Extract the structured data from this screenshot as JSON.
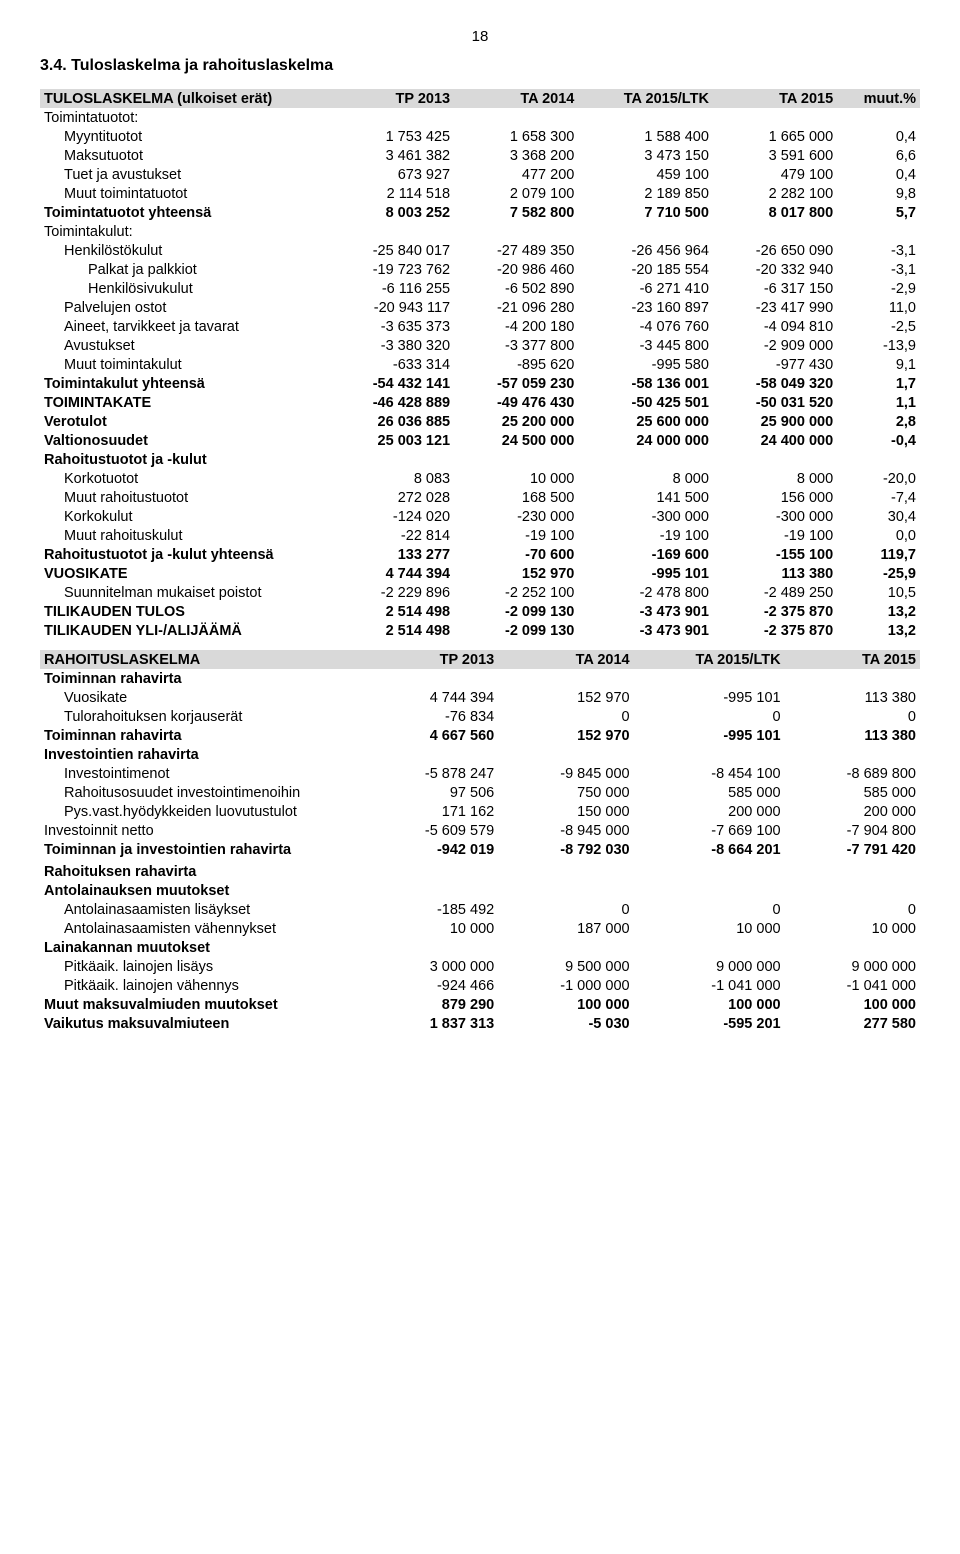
{
  "page_number": "18",
  "section": "3.4.   Tuloslaskelma ja rahoituslaskelma",
  "tulos": {
    "header": [
      "TULOSLASKELMA (ulkoiset erät)",
      "TP 2013",
      "TA 2014",
      "TA 2015/LTK",
      "TA 2015",
      "muut.%"
    ],
    "rows": [
      {
        "label": "Toimintatuotot:",
        "v": [
          "",
          "",
          "",
          "",
          ""
        ],
        "cls": ""
      },
      {
        "label": "Myyntituotot",
        "v": [
          "1 753 425",
          "1 658 300",
          "1 588 400",
          "1 665 000",
          "0,4"
        ],
        "cls": "indent1"
      },
      {
        "label": "Maksutuotot",
        "v": [
          "3 461 382",
          "3 368 200",
          "3 473 150",
          "3 591 600",
          "6,6"
        ],
        "cls": "indent1"
      },
      {
        "label": "Tuet ja avustukset",
        "v": [
          "673 927",
          "477 200",
          "459 100",
          "479 100",
          "0,4"
        ],
        "cls": "indent1"
      },
      {
        "label": "Muut toimintatuotot",
        "v": [
          "2 114 518",
          "2 079 100",
          "2 189 850",
          "2 282 100",
          "9,8"
        ],
        "cls": "indent1"
      },
      {
        "label": "Toimintatuotot yhteensä",
        "v": [
          "8 003 252",
          "7 582 800",
          "7 710 500",
          "8 017 800",
          "5,7"
        ],
        "cls": "bold"
      },
      {
        "label": "Toimintakulut:",
        "v": [
          "",
          "",
          "",
          "",
          ""
        ],
        "cls": ""
      },
      {
        "label": "Henkilöstökulut",
        "v": [
          "-25 840 017",
          "-27 489 350",
          "-26 456 964",
          "-26 650 090",
          "-3,1"
        ],
        "cls": "indent1"
      },
      {
        "label": "Palkat ja palkkiot",
        "v": [
          "-19 723 762",
          "-20 986 460",
          "-20 185 554",
          "-20 332 940",
          "-3,1"
        ],
        "cls": "indent2"
      },
      {
        "label": "Henkilösivukulut",
        "v": [
          "-6 116 255",
          "-6 502 890",
          "-6 271 410",
          "-6 317 150",
          "-2,9"
        ],
        "cls": "indent2"
      },
      {
        "label": "Palvelujen ostot",
        "v": [
          "-20 943 117",
          "-21 096 280",
          "-23 160 897",
          "-23 417 990",
          "11,0"
        ],
        "cls": "indent1"
      },
      {
        "label": "Aineet, tarvikkeet ja tavarat",
        "v": [
          "-3 635 373",
          "-4 200 180",
          "-4 076 760",
          "-4 094 810",
          "-2,5"
        ],
        "cls": "indent1"
      },
      {
        "label": "Avustukset",
        "v": [
          "-3 380 320",
          "-3 377 800",
          "-3 445 800",
          "-2 909 000",
          "-13,9"
        ],
        "cls": "indent1"
      },
      {
        "label": "Muut toimintakulut",
        "v": [
          "-633 314",
          "-895 620",
          "-995 580",
          "-977 430",
          "9,1"
        ],
        "cls": "indent1"
      },
      {
        "label": "Toimintakulut yhteensä",
        "v": [
          "-54 432 141",
          "-57 059 230",
          "-58 136 001",
          "-58 049 320",
          "1,7"
        ],
        "cls": "bold"
      },
      {
        "label": "TOIMINTAKATE",
        "v": [
          "-46 428 889",
          "-49 476 430",
          "-50 425 501",
          "-50 031 520",
          "1,1"
        ],
        "cls": "bold"
      },
      {
        "label": "Verotulot",
        "v": [
          "26 036 885",
          "25 200 000",
          "25 600 000",
          "25 900 000",
          "2,8"
        ],
        "cls": "bold"
      },
      {
        "label": "Valtionosuudet",
        "v": [
          "25 003 121",
          "24 500 000",
          "24 000 000",
          "24 400 000",
          "-0,4"
        ],
        "cls": "bold"
      },
      {
        "label": "Rahoitustuotot ja -kulut",
        "v": [
          "",
          "",
          "",
          "",
          ""
        ],
        "cls": "bold"
      },
      {
        "label": "Korkotuotot",
        "v": [
          "8 083",
          "10 000",
          "8 000",
          "8 000",
          "-20,0"
        ],
        "cls": "indent1"
      },
      {
        "label": "Muut rahoitustuotot",
        "v": [
          "272 028",
          "168 500",
          "141 500",
          "156 000",
          "-7,4"
        ],
        "cls": "indent1"
      },
      {
        "label": "Korkokulut",
        "v": [
          "-124 020",
          "-230 000",
          "-300 000",
          "-300 000",
          "30,4"
        ],
        "cls": "indent1"
      },
      {
        "label": "Muut rahoituskulut",
        "v": [
          "-22 814",
          "-19 100",
          "-19 100",
          "-19 100",
          "0,0"
        ],
        "cls": "indent1"
      },
      {
        "label": "Rahoitustuotot ja -kulut yhteensä",
        "v": [
          "133 277",
          "-70 600",
          "-169 600",
          "-155 100",
          "119,7"
        ],
        "cls": "bold"
      },
      {
        "label": "VUOSIKATE",
        "v": [
          "4 744 394",
          "152 970",
          "-995 101",
          "113 380",
          "-25,9"
        ],
        "cls": "bold"
      },
      {
        "label": "Suunnitelman mukaiset poistot",
        "v": [
          "-2 229 896",
          "-2 252 100",
          "-2 478 800",
          "-2 489 250",
          "10,5"
        ],
        "cls": "indent1"
      },
      {
        "label": "TILIKAUDEN TULOS",
        "v": [
          "2 514 498",
          "-2 099 130",
          "-3 473 901",
          "-2 375 870",
          "13,2"
        ],
        "cls": "bold"
      },
      {
        "label": "TILIKAUDEN YLI-/ALIJÄÄMÄ",
        "v": [
          "2 514 498",
          "-2 099 130",
          "-3 473 901",
          "-2 375 870",
          "13,2"
        ],
        "cls": "bold"
      }
    ]
  },
  "rahoitus": {
    "header": [
      "RAHOITUSLASKELMA",
      "TP 2013",
      "TA 2014",
      "TA 2015/LTK",
      "TA 2015"
    ],
    "rows": [
      {
        "label": "Toiminnan rahavirta",
        "v": [
          "",
          "",
          "",
          ""
        ],
        "cls": "bold"
      },
      {
        "label": "Vuosikate",
        "v": [
          "4 744 394",
          "152 970",
          "-995 101",
          "113 380"
        ],
        "cls": "indent1"
      },
      {
        "label": "Tulorahoituksen korjauserät",
        "v": [
          "-76 834",
          "0",
          "0",
          "0"
        ],
        "cls": "indent1"
      },
      {
        "label": "Toiminnan rahavirta",
        "v": [
          "4 667 560",
          "152 970",
          "-995 101",
          "113 380"
        ],
        "cls": "bold"
      },
      {
        "label": "Investointien rahavirta",
        "v": [
          "",
          "",
          "",
          ""
        ],
        "cls": "bold"
      },
      {
        "label": "Investointimenot",
        "v": [
          "-5 878 247",
          "-9 845 000",
          "-8 454 100",
          "-8 689 800"
        ],
        "cls": "indent1"
      },
      {
        "label": "Rahoitusosuudet investointimenoihin",
        "v": [
          "97 506",
          "750 000",
          "585 000",
          "585 000"
        ],
        "cls": "indent1"
      },
      {
        "label": "Pys.vast.hyödykkeiden luovutustulot",
        "v": [
          "171 162",
          "150 000",
          "200 000",
          "200 000"
        ],
        "cls": "indent1"
      },
      {
        "label": "Investoinnit netto",
        "v": [
          "-5 609 579",
          "-8 945 000",
          "-7 669 100",
          "-7 904 800"
        ],
        "cls": ""
      },
      {
        "label": "Toiminnan ja investointien rahavirta",
        "v": [
          "-942 019",
          "-8 792 030",
          "-8 664 201",
          "-7 791 420"
        ],
        "cls": "bold"
      },
      {
        "label": "",
        "v": [
          "",
          "",
          "",
          ""
        ],
        "cls": ""
      },
      {
        "label": "Rahoituksen rahavirta",
        "v": [
          "",
          "",
          "",
          ""
        ],
        "cls": "bold"
      },
      {
        "label": "Antolainauksen muutokset",
        "v": [
          "",
          "",
          "",
          ""
        ],
        "cls": "bold"
      },
      {
        "label": "Antolainasaamisten lisäykset",
        "v": [
          "-185 492",
          "0",
          "0",
          "0"
        ],
        "cls": "indent1"
      },
      {
        "label": "Antolainasaamisten vähennykset",
        "v": [
          "10 000",
          "187 000",
          "10 000",
          "10 000"
        ],
        "cls": "indent1"
      },
      {
        "label": "Lainakannan muutokset",
        "v": [
          "",
          "",
          "",
          ""
        ],
        "cls": "bold"
      },
      {
        "label": "Pitkäaik. lainojen lisäys",
        "v": [
          "3 000 000",
          "9 500 000",
          "9 000 000",
          "9 000 000"
        ],
        "cls": "indent1"
      },
      {
        "label": "Pitkäaik. lainojen vähennys",
        "v": [
          "-924 466",
          "-1 000 000",
          "-1 041 000",
          "-1 041 000"
        ],
        "cls": "indent1"
      },
      {
        "label": "Muut maksuvalmiuden muutokset",
        "v": [
          "879 290",
          "100 000",
          "100 000",
          "100 000"
        ],
        "cls": "bold"
      },
      {
        "label": "Vaikutus maksuvalmiuteen",
        "v": [
          "1 837 313",
          "-5 030",
          "-595 201",
          "277 580"
        ],
        "cls": "bold"
      }
    ]
  }
}
